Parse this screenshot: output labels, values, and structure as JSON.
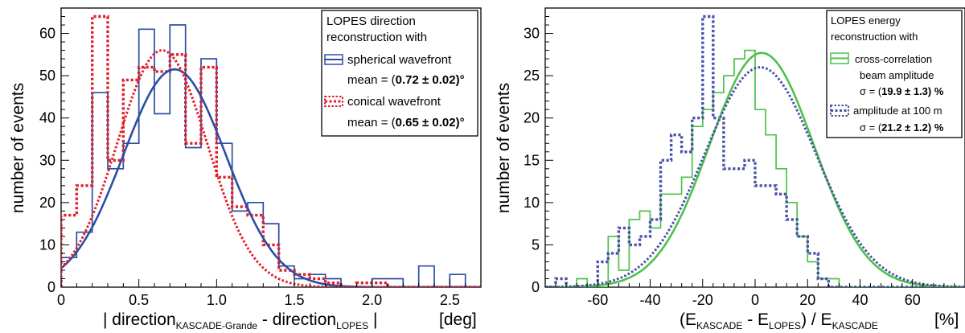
{
  "chart_data": [
    {
      "type": "histogram",
      "ylabel": "number of events",
      "xlabel": {
        "main": "| direction",
        "sub1": "KASCADE-Grande",
        "mid": " - direction",
        "sub2": "LOPES",
        "tail": " |"
      },
      "xunit": "[deg]",
      "xlim": [
        0,
        2.7
      ],
      "ylim": [
        0,
        66
      ],
      "xticks": [
        0,
        0.5,
        1.0,
        1.5,
        2.0,
        2.5
      ],
      "xtick_labels": [
        "0",
        "0.5",
        "1.0",
        "1.5",
        "2.0",
        "2.5"
      ],
      "yticks": [
        0,
        10,
        20,
        30,
        40,
        50,
        60
      ],
      "ytick_labels": [
        "0",
        "10",
        "20",
        "30",
        "40",
        "50",
        "60"
      ],
      "legend": {
        "title_line1": "LOPES direction",
        "title_line2": "reconstruction with",
        "entries": [
          {
            "label": "spherical wavefront",
            "stat_prefix": "mean = (",
            "stat_value": "0.72 ± 0.02)°"
          },
          {
            "label": "conical wavefront",
            "stat_prefix": "mean = (",
            "stat_value": "0.65 ± 0.02)°"
          }
        ]
      },
      "series": [
        {
          "name": "spherical wavefront",
          "color": "#2b4ea3",
          "style": "solid",
          "bin_width": 0.1,
          "bin_start": 0,
          "counts": [
            7,
            13,
            46,
            28,
            34,
            61,
            41,
            62,
            33,
            54,
            34,
            18,
            20,
            15,
            5,
            2,
            3,
            2,
            0,
            0,
            2,
            2,
            0,
            5,
            0,
            3,
            0
          ],
          "fit": {
            "amplitude": 51.5,
            "mean": 0.73,
            "sigma": 0.33
          }
        },
        {
          "name": "conical wavefront",
          "color": "#e0202a",
          "style": "dotted",
          "bin_width": 0.1,
          "bin_start": 0,
          "counts": [
            17,
            24,
            64,
            30,
            49,
            52,
            51,
            55,
            34,
            52,
            26,
            19,
            17,
            10,
            4,
            3,
            2,
            1,
            0,
            1,
            1,
            0,
            0,
            0,
            0,
            0,
            0
          ],
          "fit": {
            "amplitude": 56,
            "mean": 0.65,
            "sigma": 0.29
          }
        }
      ]
    },
    {
      "type": "histogram",
      "ylabel": "number of events",
      "xlabel": {
        "p1": "(E",
        "s1": "KASCADE",
        "p2": " - E",
        "s2": "LOPES",
        "p3": ") / E",
        "s3": "KASCADE"
      },
      "xunit": "[%]",
      "xlim": [
        -80,
        80
      ],
      "ylim": [
        0,
        33
      ],
      "xticks": [
        -60,
        -40,
        -20,
        0,
        20,
        40,
        60
      ],
      "xtick_labels": [
        "-60",
        "-40",
        "-20",
        "0",
        "20",
        "40",
        "60"
      ],
      "yticks": [
        0,
        5,
        10,
        15,
        20,
        25,
        30
      ],
      "ytick_labels": [
        "0",
        "5",
        "10",
        "15",
        "20",
        "25",
        "30"
      ],
      "legend": {
        "title_line1": "LOPES energy",
        "title_line2": "reconstruction with",
        "entries": [
          {
            "label_line1": "cross-correlation",
            "label_line2": "beam amplitude",
            "stat_prefix": "σ = (",
            "stat_value": "19.9 ± 1.3) %"
          },
          {
            "label": "amplitude at 100 m",
            "stat_prefix": "σ = (",
            "stat_value": "21.2 ± 1.2) %"
          }
        ]
      },
      "series": [
        {
          "name": "cross-correlation beam amplitude",
          "color": "#4cc24c",
          "style": "solid",
          "bin_width": 4,
          "bin_start": -80,
          "counts": [
            0,
            0,
            0,
            1,
            0,
            0,
            6,
            2,
            8,
            9,
            7,
            11,
            11,
            13,
            19,
            21,
            23,
            25,
            27,
            28,
            21,
            18,
            14,
            10,
            6,
            3,
            1,
            1,
            0,
            0,
            0,
            0,
            0,
            0,
            0,
            0,
            0,
            0,
            0,
            0
          ],
          "fit": {
            "amplitude": 27.7,
            "mean": 2.5,
            "sigma": 19.9
          }
        },
        {
          "name": "amplitude at 100 m",
          "color": "#4a52a8",
          "style": "dotted",
          "bin_width": 4,
          "bin_start": -80,
          "counts": [
            0,
            1,
            0,
            0,
            0,
            3,
            4,
            7,
            5,
            6,
            8,
            15,
            18,
            16,
            20,
            32,
            20,
            14,
            14,
            15,
            12,
            12,
            11,
            8,
            6,
            4,
            1,
            0,
            0,
            0,
            0,
            0,
            0,
            0,
            0,
            0,
            0,
            0,
            0,
            0
          ],
          "fit": {
            "amplitude": 26,
            "mean": 2,
            "sigma": 21.2
          }
        }
      ]
    }
  ]
}
